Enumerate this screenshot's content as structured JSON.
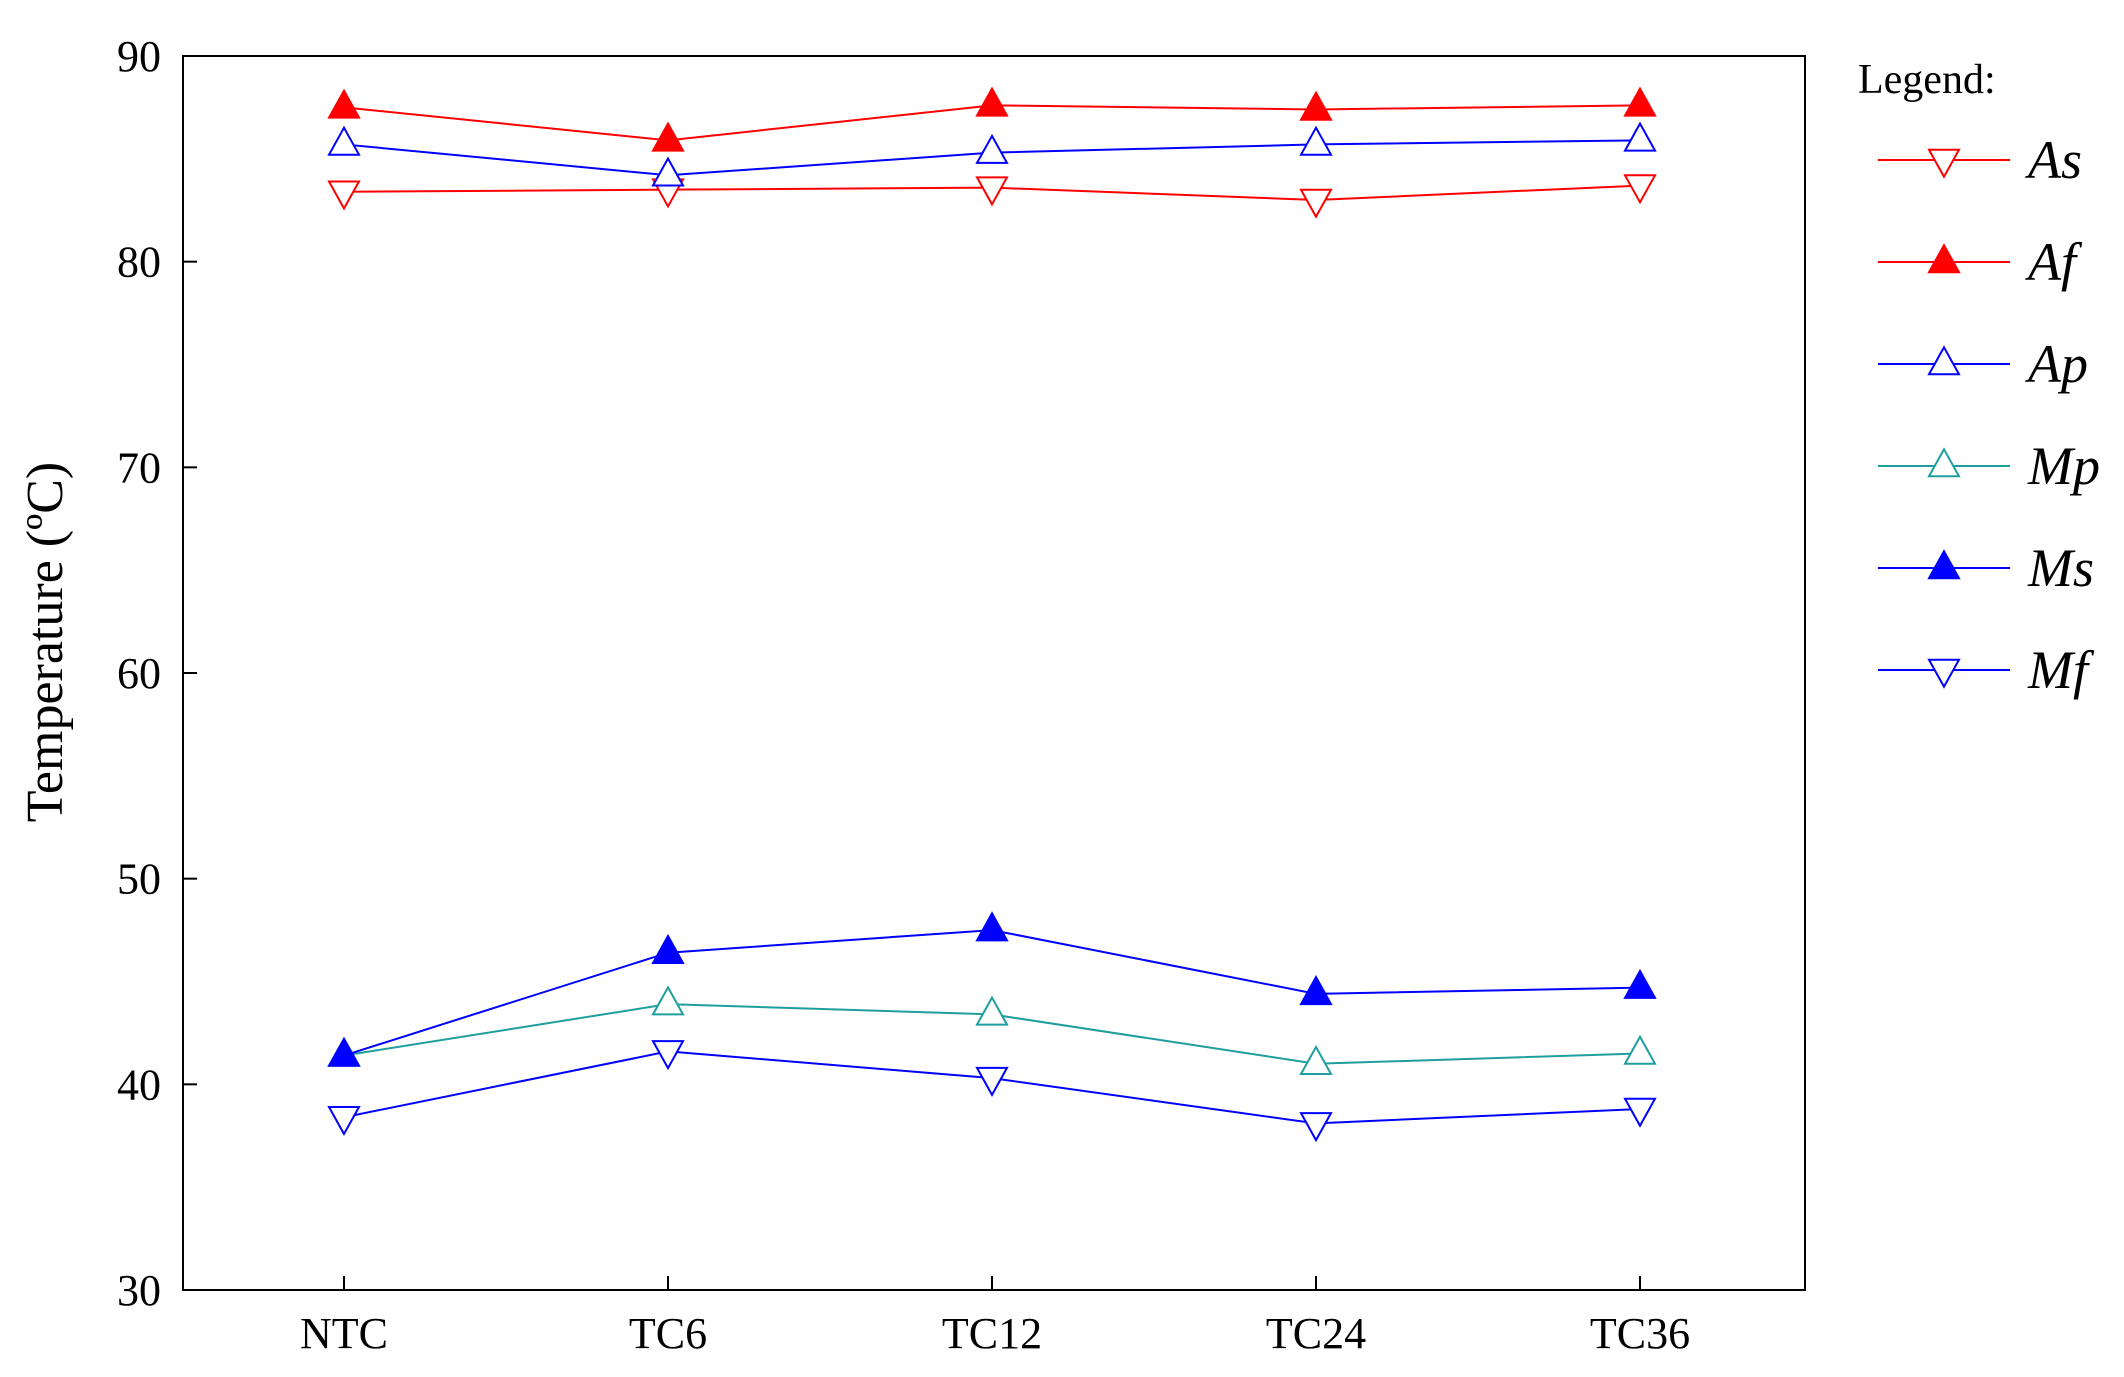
{
  "chart_data": {
    "type": "line",
    "title": "",
    "xlabel": "",
    "ylabel": "Temperature (ºC)",
    "ylim": [
      30,
      90
    ],
    "yticks": [
      30,
      40,
      50,
      60,
      70,
      80,
      90
    ],
    "categories": [
      "NTC",
      "TC6",
      "TC12",
      "TC24",
      "TC36"
    ],
    "grid": false,
    "legend": {
      "title": "Legend:",
      "position": "right"
    },
    "series": [
      {
        "name": "As",
        "color": "#ff0000",
        "marker": "triangle-down",
        "filled": false,
        "values": [
          83.4,
          83.5,
          83.6,
          83.0,
          83.7
        ]
      },
      {
        "name": "Af",
        "color": "#ff0000",
        "marker": "triangle-up",
        "filled": true,
        "values": [
          87.5,
          85.9,
          87.6,
          87.4,
          87.6
        ]
      },
      {
        "name": "Ap",
        "color": "#0000ff",
        "marker": "triangle-up",
        "filled": false,
        "values": [
          85.7,
          84.2,
          85.3,
          85.7,
          85.9
        ]
      },
      {
        "name": "Mp",
        "color": "#1f9e9e",
        "marker": "triangle-up",
        "filled": false,
        "values": [
          41.4,
          43.9,
          43.4,
          41.0,
          41.5
        ]
      },
      {
        "name": "Ms",
        "color": "#0000ff",
        "marker": "triangle-up",
        "filled": true,
        "values": [
          41.4,
          46.4,
          47.5,
          44.4,
          44.7
        ]
      },
      {
        "name": "Mf",
        "color": "#0000ff",
        "marker": "triangle-down",
        "filled": false,
        "values": [
          38.4,
          41.6,
          40.3,
          38.1,
          38.8
        ]
      }
    ]
  }
}
